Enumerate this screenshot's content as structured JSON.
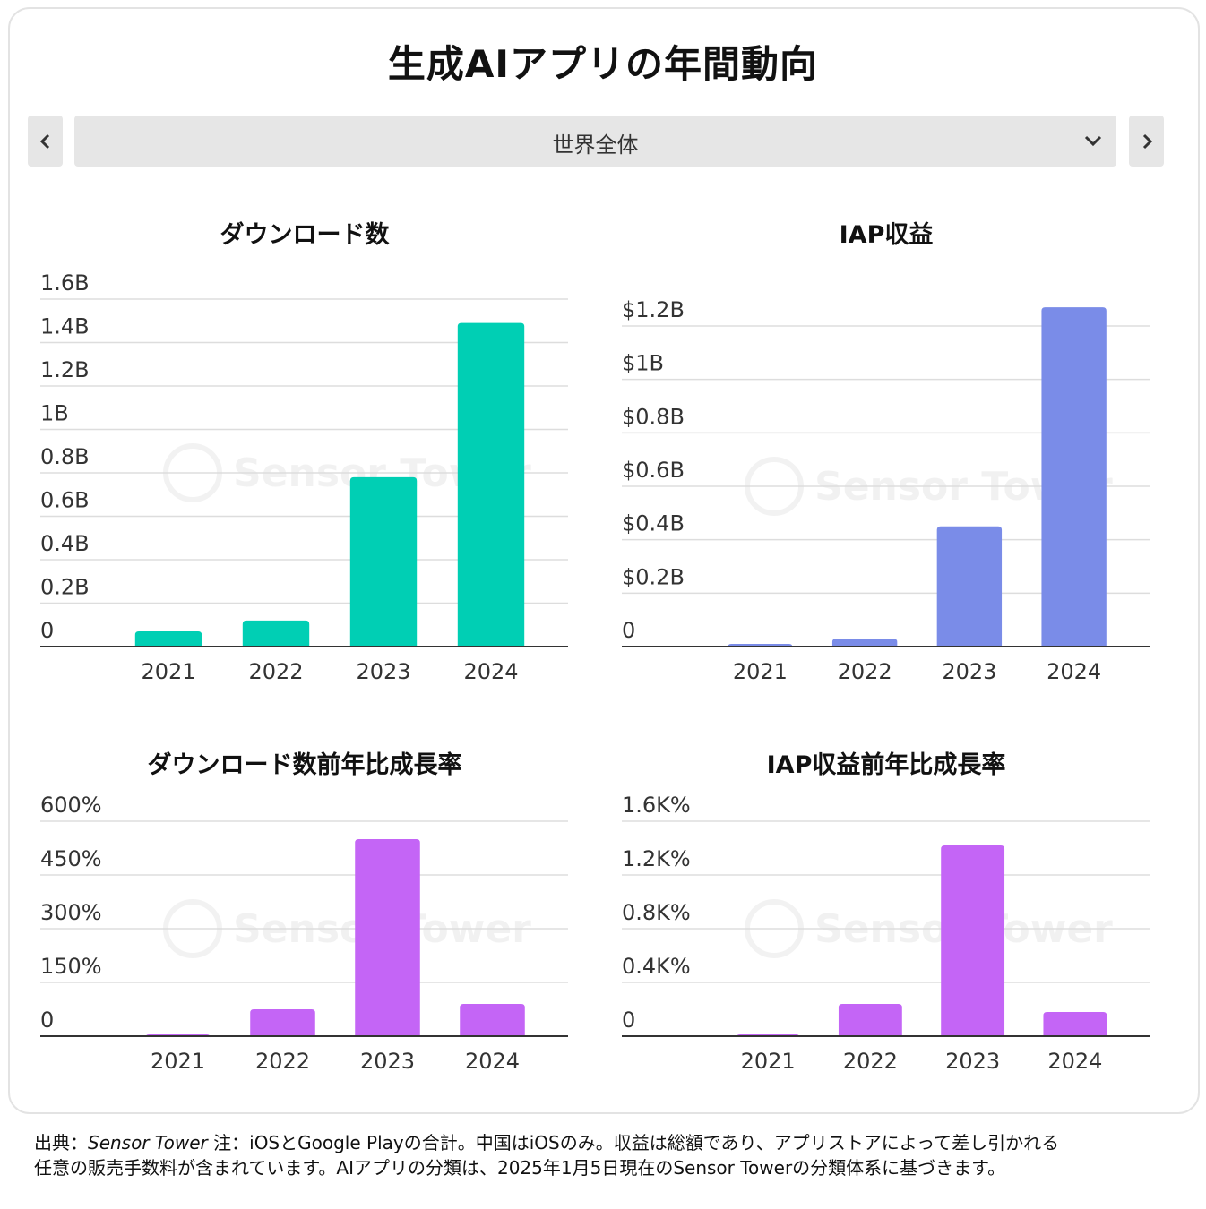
{
  "page": {
    "title": "生成AIアプリの年間動向",
    "region_selector": {
      "selected": "世界全体"
    },
    "watermark": "Sensor Tower",
    "footnote": {
      "prefix": "出典：",
      "source": "Sensor Tower",
      "note": " 注：iOSとGoogle Playの合計。中国はiOSのみ。収益は総額であり、アプリストアによって差し引かれる任意の販売手数料が含まれています。AIアプリの分類は、2025年1月5日現在のSensor Towerの分類体系に基づきます。"
    },
    "colors": {
      "teal": "#00cfb4",
      "blue": "#7a8ce8",
      "purple": "#c465f6",
      "grid": "#dddddd",
      "axis": "#333333"
    }
  },
  "chart_data": [
    {
      "id": "downloads",
      "type": "bar",
      "title": "ダウンロード数",
      "categories": [
        "2021",
        "2022",
        "2023",
        "2024"
      ],
      "values": [
        0.07,
        0.12,
        0.78,
        1.49
      ],
      "ylim": [
        0,
        1.6
      ],
      "yticks": [
        0,
        0.2,
        0.4,
        0.6,
        0.8,
        1.0,
        1.2,
        1.4,
        1.6
      ],
      "ytick_labels": [
        "0",
        "0.2B",
        "0.4B",
        "0.6B",
        "0.8B",
        "1B",
        "1.2B",
        "1.4B",
        "1.6B"
      ],
      "color": "#00cfb4",
      "unit": "B"
    },
    {
      "id": "iap-revenue",
      "type": "bar",
      "title": "IAP収益",
      "categories": [
        "2021",
        "2022",
        "2023",
        "2024"
      ],
      "values": [
        0.01,
        0.03,
        0.45,
        1.27
      ],
      "ylim": [
        0,
        1.2
      ],
      "yticks": [
        0,
        0.2,
        0.4,
        0.6,
        0.8,
        1.0,
        1.2
      ],
      "ytick_labels": [
        "0",
        "$0.2B",
        "$0.4B",
        "$0.6B",
        "$0.8B",
        "$1B",
        "$1.2B"
      ],
      "color": "#7a8ce8",
      "unit": "$B"
    },
    {
      "id": "downloads-yoy",
      "type": "bar",
      "title": "ダウンロード数前年比成長率",
      "categories": [
        "2021",
        "2022",
        "2023",
        "2024"
      ],
      "values": [
        3,
        75,
        550,
        90
      ],
      "ylim": [
        0,
        600
      ],
      "yticks": [
        0,
        150,
        300,
        450,
        600
      ],
      "ytick_labels": [
        "0",
        "150%",
        "300%",
        "450%",
        "600%"
      ],
      "color": "#c465f6",
      "unit": "%"
    },
    {
      "id": "iap-revenue-yoy",
      "type": "bar",
      "title": "IAP収益前年比成長率",
      "categories": [
        "2021",
        "2022",
        "2023",
        "2024"
      ],
      "values": [
        10,
        240,
        1420,
        180
      ],
      "ylim": [
        0,
        1600
      ],
      "yticks": [
        0,
        400,
        800,
        1200,
        1600
      ],
      "ytick_labels": [
        "0",
        "0.4K%",
        "0.8K%",
        "1.2K%",
        "1.6K%"
      ],
      "color": "#c465f6",
      "unit": "%"
    }
  ]
}
